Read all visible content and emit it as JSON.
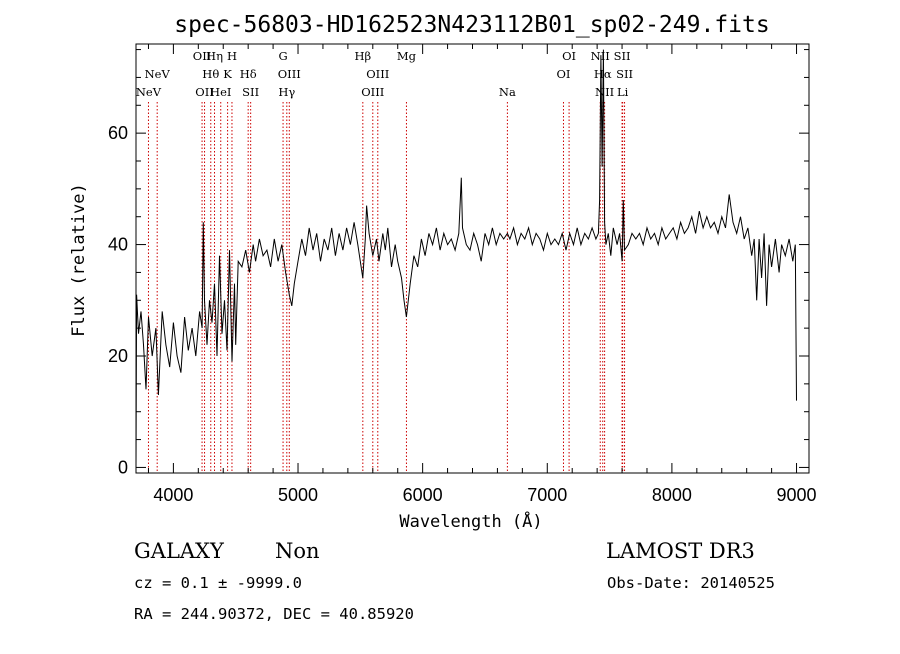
{
  "chart_data": {
    "type": "line",
    "title": "spec-56803-HD162523N423112B01_sp02-249.fits",
    "xlabel": "Wavelength (Å)",
    "ylabel": "Flux (relative)",
    "xlim": [
      3700,
      9100
    ],
    "ylim": [
      -1,
      76
    ],
    "x_ticks": [
      4000,
      5000,
      6000,
      7000,
      8000,
      9000
    ],
    "y_ticks": [
      0,
      20,
      40,
      60
    ],
    "grid": false,
    "legend": "none",
    "line_color": "#000000",
    "marker_color": "#cc0000",
    "spectrum": [
      [
        3700,
        0
      ],
      [
        3705,
        31
      ],
      [
        3720,
        24
      ],
      [
        3740,
        28
      ],
      [
        3760,
        22
      ],
      [
        3780,
        14
      ],
      [
        3800,
        27
      ],
      [
        3830,
        20
      ],
      [
        3860,
        25
      ],
      [
        3880,
        13
      ],
      [
        3910,
        28
      ],
      [
        3940,
        22
      ],
      [
        3970,
        18
      ],
      [
        4000,
        26
      ],
      [
        4030,
        20
      ],
      [
        4060,
        17
      ],
      [
        4090,
        27
      ],
      [
        4120,
        21
      ],
      [
        4150,
        25
      ],
      [
        4180,
        20
      ],
      [
        4210,
        28
      ],
      [
        4230,
        25
      ],
      [
        4240,
        44
      ],
      [
        4250,
        30
      ],
      [
        4270,
        22
      ],
      [
        4290,
        30
      ],
      [
        4310,
        26
      ],
      [
        4330,
        33
      ],
      [
        4350,
        20
      ],
      [
        4370,
        38
      ],
      [
        4390,
        24
      ],
      [
        4410,
        30
      ],
      [
        4430,
        21
      ],
      [
        4450,
        39
      ],
      [
        4470,
        19
      ],
      [
        4490,
        33
      ],
      [
        4500,
        22
      ],
      [
        4520,
        37
      ],
      [
        4550,
        36
      ],
      [
        4580,
        39
      ],
      [
        4610,
        35
      ],
      [
        4640,
        40
      ],
      [
        4660,
        37
      ],
      [
        4690,
        41
      ],
      [
        4720,
        38
      ],
      [
        4750,
        39
      ],
      [
        4780,
        36
      ],
      [
        4810,
        41
      ],
      [
        4840,
        37
      ],
      [
        4870,
        40
      ],
      [
        4900,
        35
      ],
      [
        4930,
        31
      ],
      [
        4950,
        29
      ],
      [
        4970,
        33
      ],
      [
        5000,
        37
      ],
      [
        5030,
        41
      ],
      [
        5060,
        38
      ],
      [
        5090,
        43
      ],
      [
        5120,
        39
      ],
      [
        5150,
        42
      ],
      [
        5180,
        37
      ],
      [
        5210,
        41
      ],
      [
        5240,
        39
      ],
      [
        5270,
        43
      ],
      [
        5300,
        38
      ],
      [
        5330,
        42
      ],
      [
        5360,
        39
      ],
      [
        5390,
        43
      ],
      [
        5420,
        40
      ],
      [
        5450,
        44
      ],
      [
        5480,
        40
      ],
      [
        5500,
        37
      ],
      [
        5520,
        34
      ],
      [
        5540,
        41
      ],
      [
        5550,
        47
      ],
      [
        5570,
        42
      ],
      [
        5600,
        38
      ],
      [
        5630,
        41
      ],
      [
        5650,
        37
      ],
      [
        5680,
        42
      ],
      [
        5700,
        39
      ],
      [
        5720,
        43
      ],
      [
        5750,
        36
      ],
      [
        5780,
        40
      ],
      [
        5800,
        37
      ],
      [
        5830,
        34
      ],
      [
        5850,
        30
      ],
      [
        5870,
        27
      ],
      [
        5900,
        33
      ],
      [
        5930,
        38
      ],
      [
        5960,
        36
      ],
      [
        5990,
        41
      ],
      [
        6020,
        38
      ],
      [
        6050,
        42
      ],
      [
        6080,
        40
      ],
      [
        6110,
        43
      ],
      [
        6140,
        39
      ],
      [
        6170,
        42
      ],
      [
        6200,
        40
      ],
      [
        6230,
        41
      ],
      [
        6260,
        39
      ],
      [
        6290,
        42
      ],
      [
        6310,
        52
      ],
      [
        6320,
        43
      ],
      [
        6350,
        40
      ],
      [
        6380,
        39
      ],
      [
        6410,
        42
      ],
      [
        6440,
        40
      ],
      [
        6470,
        37
      ],
      [
        6500,
        42
      ],
      [
        6530,
        40
      ],
      [
        6560,
        43
      ],
      [
        6590,
        40
      ],
      [
        6620,
        42
      ],
      [
        6650,
        41
      ],
      [
        6680,
        42
      ],
      [
        6700,
        41
      ],
      [
        6730,
        43
      ],
      [
        6760,
        40
      ],
      [
        6790,
        42
      ],
      [
        6820,
        41
      ],
      [
        6850,
        43
      ],
      [
        6880,
        40
      ],
      [
        6910,
        42
      ],
      [
        6940,
        41
      ],
      [
        6970,
        39
      ],
      [
        7000,
        42
      ],
      [
        7030,
        40
      ],
      [
        7060,
        41
      ],
      [
        7090,
        40
      ],
      [
        7120,
        42
      ],
      [
        7150,
        39
      ],
      [
        7180,
        42
      ],
      [
        7210,
        40
      ],
      [
        7240,
        43
      ],
      [
        7270,
        40
      ],
      [
        7300,
        42
      ],
      [
        7330,
        41
      ],
      [
        7360,
        43
      ],
      [
        7390,
        41
      ],
      [
        7410,
        42
      ],
      [
        7420,
        48
      ],
      [
        7430,
        74
      ],
      [
        7440,
        54
      ],
      [
        7450,
        75
      ],
      [
        7460,
        44
      ],
      [
        7470,
        40
      ],
      [
        7490,
        42
      ],
      [
        7510,
        38
      ],
      [
        7530,
        43
      ],
      [
        7560,
        40
      ],
      [
        7580,
        42
      ],
      [
        7600,
        37
      ],
      [
        7610,
        48
      ],
      [
        7620,
        39
      ],
      [
        7650,
        40
      ],
      [
        7680,
        42
      ],
      [
        7710,
        41
      ],
      [
        7740,
        42
      ],
      [
        7770,
        40
      ],
      [
        7800,
        43
      ],
      [
        7830,
        41
      ],
      [
        7860,
        42
      ],
      [
        7890,
        40
      ],
      [
        7920,
        43
      ],
      [
        7950,
        41
      ],
      [
        7980,
        42
      ],
      [
        8010,
        43
      ],
      [
        8040,
        41
      ],
      [
        8070,
        44
      ],
      [
        8100,
        42
      ],
      [
        8130,
        43
      ],
      [
        8160,
        45
      ],
      [
        8190,
        42
      ],
      [
        8220,
        46
      ],
      [
        8250,
        43
      ],
      [
        8280,
        45
      ],
      [
        8310,
        43
      ],
      [
        8340,
        44
      ],
      [
        8370,
        42
      ],
      [
        8400,
        45
      ],
      [
        8430,
        43
      ],
      [
        8460,
        49
      ],
      [
        8490,
        44
      ],
      [
        8520,
        42
      ],
      [
        8550,
        45
      ],
      [
        8580,
        41
      ],
      [
        8610,
        43
      ],
      [
        8640,
        38
      ],
      [
        8660,
        41
      ],
      [
        8680,
        30
      ],
      [
        8700,
        41
      ],
      [
        8720,
        34
      ],
      [
        8740,
        42
      ],
      [
        8760,
        29
      ],
      [
        8780,
        40
      ],
      [
        8800,
        36
      ],
      [
        8830,
        41
      ],
      [
        8860,
        35
      ],
      [
        8880,
        40
      ],
      [
        8910,
        38
      ],
      [
        8940,
        41
      ],
      [
        8970,
        37
      ],
      [
        8990,
        40
      ],
      [
        9000,
        12
      ]
    ],
    "line_markers": [
      {
        "label": "NeV",
        "wavelength": 3800,
        "row": 2
      },
      {
        "label": "NeV",
        "wavelength": 3870,
        "row": 1
      },
      {
        "label": "OII",
        "wavelength": 4230,
        "row": 0
      },
      {
        "label": "OII",
        "wavelength": 4250,
        "row": 2
      },
      {
        "label": "Hη",
        "wavelength": 4330,
        "row": 0
      },
      {
        "label": "Hθ",
        "wavelength": 4300,
        "row": 1
      },
      {
        "label": "HeI",
        "wavelength": 4380,
        "row": 2
      },
      {
        "label": "H",
        "wavelength": 4470,
        "row": 0
      },
      {
        "label": "K",
        "wavelength": 4435,
        "row": 1
      },
      {
        "label": "Hδ",
        "wavelength": 4600,
        "row": 1
      },
      {
        "label": "SII",
        "wavelength": 4620,
        "row": 2
      },
      {
        "label": "G",
        "wavelength": 4880,
        "row": 0
      },
      {
        "label": "OIII",
        "wavelength": 4930,
        "row": 1
      },
      {
        "label": "Hγ",
        "wavelength": 4910,
        "row": 2
      },
      {
        "label": "Hβ",
        "wavelength": 5520,
        "row": 0
      },
      {
        "label": "OIII",
        "wavelength": 5640,
        "row": 1
      },
      {
        "label": "OIII",
        "wavelength": 5600,
        "row": 2
      },
      {
        "label": "Mg",
        "wavelength": 5870,
        "row": 0
      },
      {
        "label": "Na",
        "wavelength": 6680,
        "row": 2
      },
      {
        "label": "OI",
        "wavelength": 7175,
        "row": 0
      },
      {
        "label": "OI",
        "wavelength": 7130,
        "row": 1
      },
      {
        "label": "NII",
        "wavelength": 7425,
        "row": 0
      },
      {
        "label": "Hα",
        "wavelength": 7445,
        "row": 1
      },
      {
        "label": "NII",
        "wavelength": 7460,
        "row": 2
      },
      {
        "label": "SII",
        "wavelength": 7600,
        "row": 0
      },
      {
        "label": "SII",
        "wavelength": 7620,
        "row": 1
      },
      {
        "label": "Li",
        "wavelength": 7605,
        "row": 2
      }
    ]
  },
  "info": {
    "object_class": "GALAXY",
    "subclass": "Non",
    "survey": "LAMOST DR3",
    "redshift_line": "cz = 0.1 ± -9999.0",
    "obs_date": "Obs-Date: 20140525",
    "coords": "RA = 244.90372, DEC =  40.85920"
  }
}
